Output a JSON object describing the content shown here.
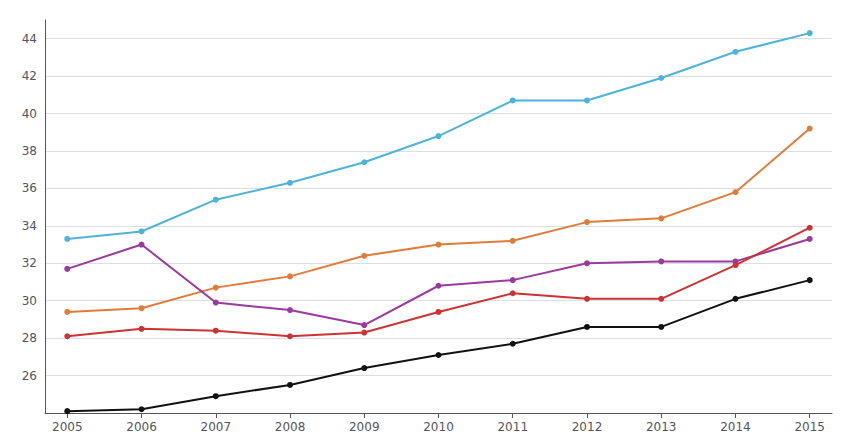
{
  "chart_data": {
    "type": "line",
    "x": [
      2005,
      2006,
      2007,
      2008,
      2009,
      2010,
      2011,
      2012,
      2013,
      2014,
      2015
    ],
    "series": [
      {
        "color": "#4db3d9",
        "values": [
          33.3,
          33.7,
          35.4,
          36.3,
          37.4,
          38.8,
          40.7,
          40.7,
          41.9,
          43.3,
          44.3
        ]
      },
      {
        "color": "#e07b39",
        "values": [
          29.4,
          29.6,
          30.7,
          31.3,
          32.4,
          33.0,
          33.2,
          34.2,
          34.4,
          35.8,
          39.2
        ]
      },
      {
        "color": "#9b3a9e",
        "values": [
          31.7,
          33.0,
          29.9,
          29.5,
          28.7,
          30.8,
          31.1,
          32.0,
          32.1,
          32.1,
          33.3
        ]
      },
      {
        "color": "#cc3333",
        "values": [
          28.1,
          28.5,
          28.4,
          28.1,
          28.3,
          29.4,
          30.4,
          30.1,
          30.1,
          31.9,
          33.9
        ]
      },
      {
        "color": "#111111",
        "values": [
          24.1,
          24.2,
          24.9,
          25.5,
          26.4,
          27.1,
          27.7,
          28.6,
          28.6,
          30.1,
          31.1
        ]
      }
    ],
    "xlim": [
      2004.7,
      2015.3
    ],
    "xticks": [
      2005,
      2006,
      2007,
      2008,
      2009,
      2010,
      2011,
      2012,
      2013,
      2014,
      2015
    ],
    "ylim": [
      24.0,
      45.0
    ],
    "yticks": [
      26,
      28,
      30,
      32,
      34,
      36,
      38,
      40,
      42,
      44
    ],
    "grid": true,
    "marker": "circle"
  }
}
